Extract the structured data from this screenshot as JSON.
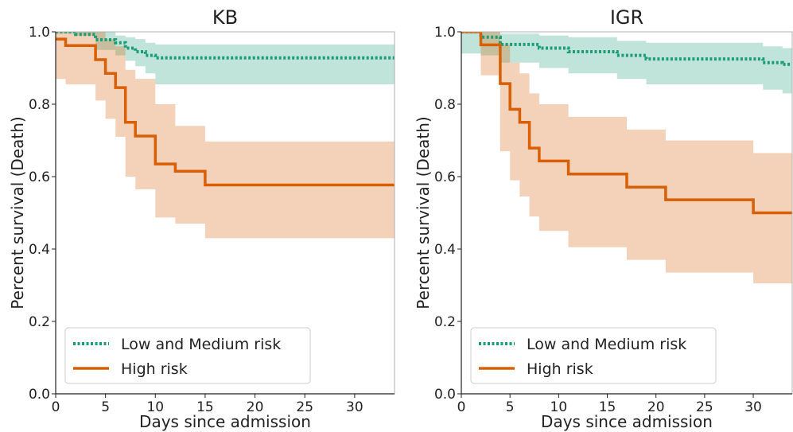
{
  "colors": {
    "low_medium": "#1b9e77",
    "high": "#d95f02",
    "low_medium_band": "#1b9e77",
    "high_band": "#d95f02",
    "axis": "#222222"
  },
  "chart_data": [
    {
      "type": "line",
      "title": "KB",
      "xlabel": "Days since admission",
      "ylabel": "Percent survival (Death)",
      "xlim": [
        0,
        34
      ],
      "ylim": [
        0.0,
        1.0
      ],
      "xticks": [
        "0",
        "5",
        "10",
        "15",
        "20",
        "25",
        "30"
      ],
      "yticks": [
        "0.0",
        "0.2",
        "0.4",
        "0.6",
        "0.8",
        "1.0"
      ],
      "legend": {
        "placement": "lower-left",
        "entries": [
          "Low and Medium risk",
          "High risk"
        ]
      },
      "series": [
        {
          "name": "Low and Medium risk",
          "style": "dotted",
          "steps": [
            [
              0,
              1.0
            ],
            [
              2,
              0.993
            ],
            [
              4,
              0.978
            ],
            [
              6,
              0.97
            ],
            [
              7,
              0.955
            ],
            [
              8,
              0.945
            ],
            [
              9,
              0.935
            ],
            [
              10,
              0.928
            ],
            [
              34,
              0.928
            ]
          ],
          "band_low": [
            [
              0,
              0.995
            ],
            [
              2,
              0.99
            ],
            [
              4,
              0.95
            ],
            [
              6,
              0.935
            ],
            [
              7,
              0.92
            ],
            [
              8,
              0.905
            ],
            [
              9,
              0.885
            ],
            [
              10,
              0.855
            ],
            [
              34,
              0.855
            ]
          ],
          "band_high": [
            [
              0,
              1.0
            ],
            [
              2,
              1.0
            ],
            [
              4,
              1.0
            ],
            [
              6,
              0.99
            ],
            [
              7,
              0.985
            ],
            [
              8,
              0.98
            ],
            [
              9,
              0.97
            ],
            [
              10,
              0.965
            ],
            [
              34,
              0.965
            ]
          ]
        },
        {
          "name": "High risk",
          "style": "solid",
          "steps": [
            [
              0,
              0.98
            ],
            [
              1,
              0.962
            ],
            [
              4,
              0.923
            ],
            [
              5,
              0.885
            ],
            [
              6,
              0.846
            ],
            [
              7,
              0.75
            ],
            [
              8,
              0.712
            ],
            [
              10,
              0.635
            ],
            [
              12,
              0.615
            ],
            [
              15,
              0.577
            ],
            [
              34,
              0.577
            ]
          ],
          "band_low": [
            [
              0,
              0.87
            ],
            [
              1,
              0.855
            ],
            [
              4,
              0.81
            ],
            [
              5,
              0.76
            ],
            [
              6,
              0.71
            ],
            [
              7,
              0.6
            ],
            [
              8,
              0.565
            ],
            [
              10,
              0.487
            ],
            [
              12,
              0.47
            ],
            [
              15,
              0.43
            ],
            [
              34,
              0.43
            ]
          ],
          "band_high": [
            [
              0,
              1.0
            ],
            [
              1,
              1.0
            ],
            [
              4,
              1.0
            ],
            [
              5,
              0.98
            ],
            [
              6,
              0.96
            ],
            [
              7,
              0.895
            ],
            [
              8,
              0.87
            ],
            [
              10,
              0.8
            ],
            [
              12,
              0.74
            ],
            [
              15,
              0.697
            ],
            [
              34,
              0.697
            ]
          ]
        }
      ]
    },
    {
      "type": "line",
      "title": "IGR",
      "xlabel": "Days since admission",
      "ylabel": "Percent survival (Death)",
      "xlim": [
        0,
        34
      ],
      "ylim": [
        0.0,
        1.0
      ],
      "xticks": [
        "0",
        "5",
        "10",
        "15",
        "20",
        "25",
        "30"
      ],
      "yticks": [
        "0.0",
        "0.2",
        "0.4",
        "0.6",
        "0.8",
        "1.0"
      ],
      "legend": {
        "placement": "lower-left",
        "entries": [
          "Low and Medium risk",
          "High risk"
        ]
      },
      "series": [
        {
          "name": "Low and Medium risk",
          "style": "dotted",
          "steps": [
            [
              0,
              1.0
            ],
            [
              2,
              0.985
            ],
            [
              4,
              0.965
            ],
            [
              8,
              0.955
            ],
            [
              11,
              0.945
            ],
            [
              16,
              0.935
            ],
            [
              19,
              0.925
            ],
            [
              31,
              0.915
            ],
            [
              33,
              0.91
            ],
            [
              34,
              0.91
            ]
          ],
          "band_low": [
            [
              0,
              0.94
            ],
            [
              2,
              0.935
            ],
            [
              4,
              0.915
            ],
            [
              8,
              0.9
            ],
            [
              11,
              0.885
            ],
            [
              16,
              0.87
            ],
            [
              19,
              0.855
            ],
            [
              31,
              0.84
            ],
            [
              33,
              0.83
            ],
            [
              34,
              0.83
            ]
          ],
          "band_high": [
            [
              0,
              1.0
            ],
            [
              2,
              1.0
            ],
            [
              4,
              0.995
            ],
            [
              8,
              0.99
            ],
            [
              11,
              0.985
            ],
            [
              16,
              0.975
            ],
            [
              19,
              0.97
            ],
            [
              31,
              0.96
            ],
            [
              33,
              0.955
            ],
            [
              34,
              0.955
            ]
          ]
        },
        {
          "name": "High risk",
          "style": "solid",
          "steps": [
            [
              0,
              1.0
            ],
            [
              2,
              0.964
            ],
            [
              4,
              0.857
            ],
            [
              5,
              0.786
            ],
            [
              6,
              0.75
            ],
            [
              7,
              0.679
            ],
            [
              8,
              0.643
            ],
            [
              11,
              0.607
            ],
            [
              17,
              0.571
            ],
            [
              21,
              0.536
            ],
            [
              30,
              0.5
            ],
            [
              34,
              0.5
            ]
          ],
          "band_low": [
            [
              0,
              1.0
            ],
            [
              2,
              0.88
            ],
            [
              4,
              0.67
            ],
            [
              5,
              0.59
            ],
            [
              6,
              0.545
            ],
            [
              7,
              0.49
            ],
            [
              8,
              0.45
            ],
            [
              11,
              0.405
            ],
            [
              17,
              0.37
            ],
            [
              21,
              0.335
            ],
            [
              30,
              0.305
            ],
            [
              34,
              0.305
            ]
          ],
          "band_high": [
            [
              0,
              1.0
            ],
            [
              2,
              1.0
            ],
            [
              4,
              0.965
            ],
            [
              5,
              0.915
            ],
            [
              6,
              0.885
            ],
            [
              7,
              0.83
            ],
            [
              8,
              0.8
            ],
            [
              11,
              0.765
            ],
            [
              17,
              0.73
            ],
            [
              21,
              0.7
            ],
            [
              30,
              0.665
            ],
            [
              34,
              0.665
            ]
          ]
        }
      ]
    }
  ]
}
